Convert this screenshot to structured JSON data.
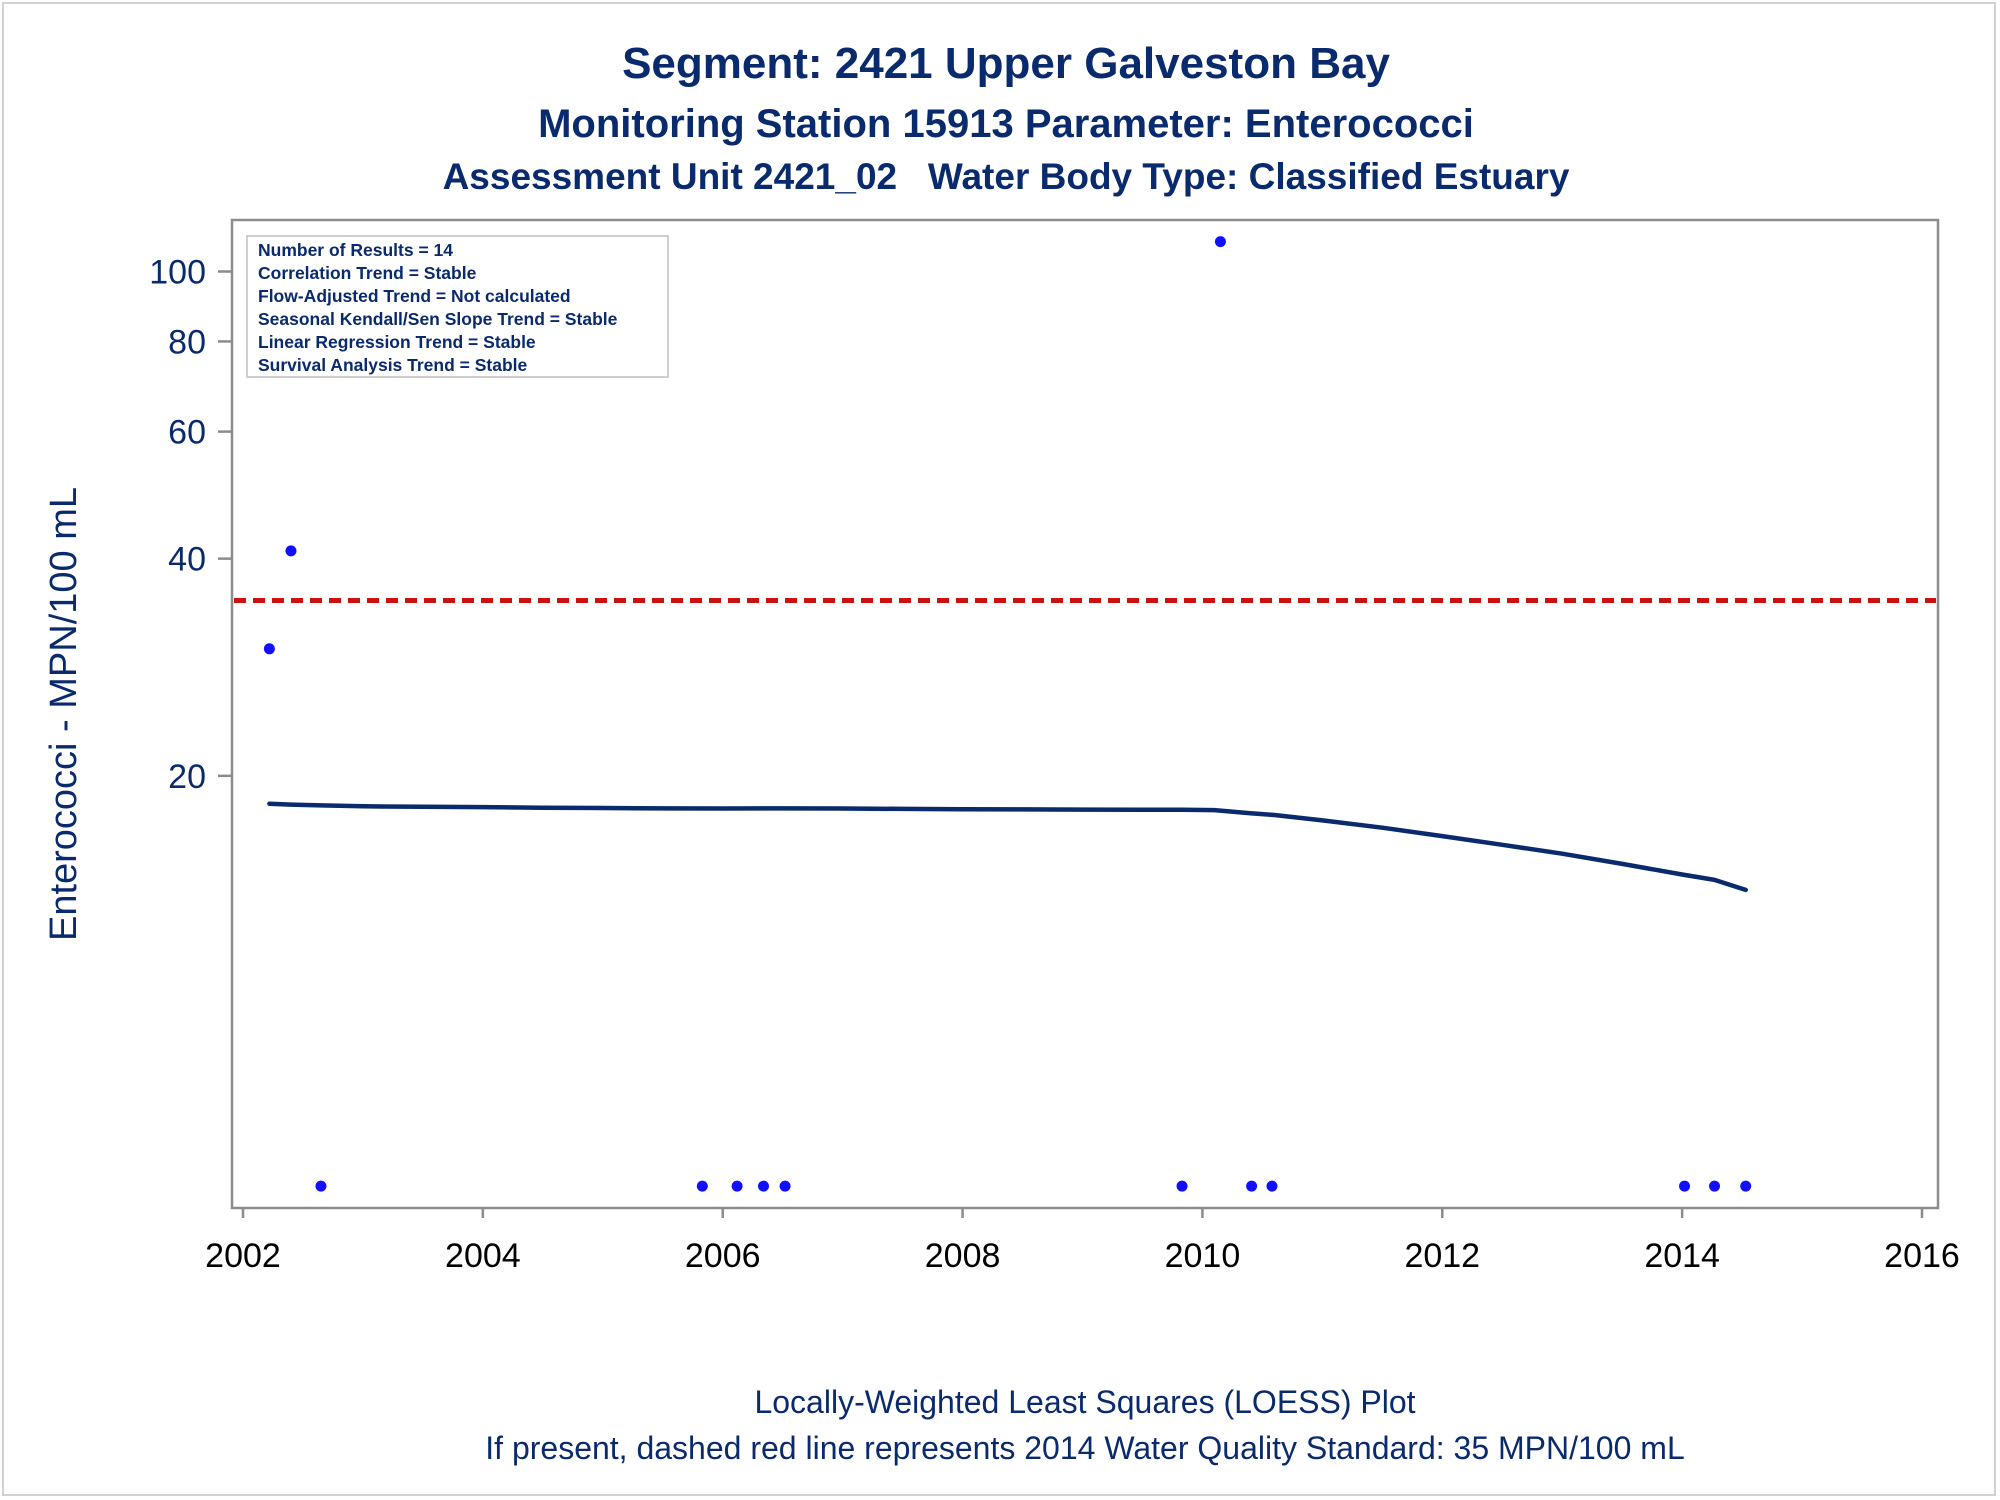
{
  "chart_data": {
    "type": "scatter",
    "title": "Segment: 2421  Upper Galveston Bay",
    "subtitle_lines": [
      "Monitoring Station 15913 Parameter: Enterococci",
      "Assessment Unit 2421_02   Water Body Type: Classified Estuary"
    ],
    "ylabel": "Enterococci - MPN/100 mL",
    "xlabel": "",
    "footnotes": [
      "Locally-Weighted Least Squares (LOESS) Plot",
      "If present, dashed red line represents 2014 Water Quality Standard: 35 MPN/100 mL"
    ],
    "y_scale": "log",
    "xlim": [
      2002,
      2016
    ],
    "ylim": [
      5.2,
      112
    ],
    "x_ticks": [
      2002,
      2004,
      2006,
      2008,
      2010,
      2012,
      2014,
      2016
    ],
    "x_tick_labels": [
      "2002",
      "2004",
      "2006",
      "2008",
      "2010",
      "2012",
      "2014",
      "2016"
    ],
    "y_ticks": [
      20,
      40,
      60,
      80,
      100
    ],
    "y_tick_labels": [
      "20",
      "40",
      "60",
      "80",
      "100"
    ],
    "grid": false,
    "stats_box": {
      "position": "top-left",
      "lines": [
        "Number of Results = 14",
        "Correlation Trend = Stable",
        "Flow-Adjusted Trend = Not calculated",
        "Seasonal Kendall/Sen Slope Trend = Stable",
        "Linear Regression Trend = Stable",
        "Survival Analysis Trend = Stable"
      ]
    },
    "reference_line": {
      "value": 35,
      "style": "dashed",
      "color": "#cc1111"
    },
    "series": [
      {
        "kind": "points",
        "color": "#1010ff",
        "points": [
          {
            "x": 2002.22,
            "y": 30
          },
          {
            "x": 2002.4,
            "y": 41
          },
          {
            "x": 2002.65,
            "y": 5.4
          },
          {
            "x": 2005.83,
            "y": 5.4
          },
          {
            "x": 2006.12,
            "y": 5.4
          },
          {
            "x": 2006.34,
            "y": 5.4
          },
          {
            "x": 2006.52,
            "y": 5.4
          },
          {
            "x": 2009.83,
            "y": 5.4
          },
          {
            "x": 2010.15,
            "y": 110
          },
          {
            "x": 2010.41,
            "y": 5.4
          },
          {
            "x": 2010.58,
            "y": 5.4
          },
          {
            "x": 2014.02,
            "y": 5.4
          },
          {
            "x": 2014.27,
            "y": 5.4
          },
          {
            "x": 2014.53,
            "y": 5.4
          }
        ]
      },
      {
        "kind": "loess",
        "color": "#0a2a6e",
        "points": [
          {
            "x": 2002.22,
            "y": 18.3
          },
          {
            "x": 2002.4,
            "y": 18.25
          },
          {
            "x": 2002.65,
            "y": 18.2
          },
          {
            "x": 2003.0,
            "y": 18.15
          },
          {
            "x": 2003.5,
            "y": 18.12
          },
          {
            "x": 2004.0,
            "y": 18.1
          },
          {
            "x": 2004.5,
            "y": 18.07
          },
          {
            "x": 2005.0,
            "y": 18.05
          },
          {
            "x": 2005.5,
            "y": 18.03
          },
          {
            "x": 2006.0,
            "y": 18.02
          },
          {
            "x": 2006.5,
            "y": 18.03
          },
          {
            "x": 2007.0,
            "y": 18.02
          },
          {
            "x": 2007.5,
            "y": 18.0
          },
          {
            "x": 2008.0,
            "y": 17.98
          },
          {
            "x": 2008.5,
            "y": 17.97
          },
          {
            "x": 2009.0,
            "y": 17.96
          },
          {
            "x": 2009.5,
            "y": 17.95
          },
          {
            "x": 2009.83,
            "y": 17.95
          },
          {
            "x": 2010.1,
            "y": 17.93
          },
          {
            "x": 2010.4,
            "y": 17.75
          },
          {
            "x": 2010.6,
            "y": 17.65
          },
          {
            "x": 2011.0,
            "y": 17.35
          },
          {
            "x": 2011.5,
            "y": 16.95
          },
          {
            "x": 2012.0,
            "y": 16.5
          },
          {
            "x": 2012.5,
            "y": 16.05
          },
          {
            "x": 2013.0,
            "y": 15.6
          },
          {
            "x": 2013.5,
            "y": 15.1
          },
          {
            "x": 2014.0,
            "y": 14.6
          },
          {
            "x": 2014.27,
            "y": 14.35
          },
          {
            "x": 2014.53,
            "y": 13.9
          }
        ]
      }
    ]
  }
}
